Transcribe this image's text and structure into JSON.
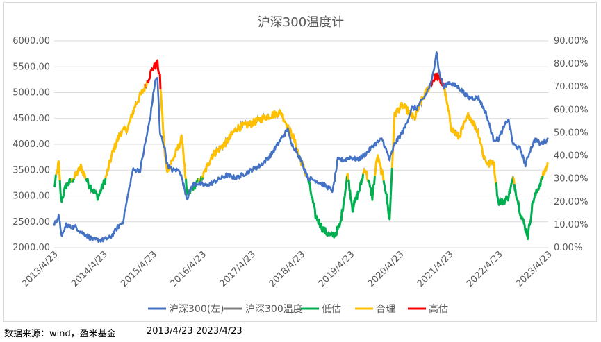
{
  "chart_data": {
    "type": "line",
    "title": "沪深300温度计",
    "left_axis": {
      "min": 2000,
      "max": 6000,
      "step": 500,
      "ticks": [
        "6000.00",
        "5500.00",
        "5000.00",
        "4500.00",
        "4000.00",
        "3500.00",
        "3000.00",
        "2500.00",
        "2000.00"
      ]
    },
    "right_axis": {
      "min": 0,
      "max": 90,
      "step": 10,
      "ticks": [
        "90.00%",
        "80.00%",
        "70.00%",
        "60.00%",
        "50.00%",
        "40.00%",
        "30.00%",
        "20.00%",
        "10.00%",
        "0.00%"
      ]
    },
    "x_axis": {
      "start": 2013.31,
      "end": 2023.31,
      "ticks": [
        "2013/4/23",
        "2014/4/23",
        "2015/4/23",
        "2016/4/23",
        "2017/4/23",
        "2018/4/23",
        "2019/4/23",
        "2020/4/23",
        "2021/4/23",
        "2022/4/23",
        "2023/4/23"
      ]
    },
    "thresholds": {
      "low": 30,
      "high": 70
    },
    "colors": {
      "index": "#4472C4",
      "temperature": "#808080",
      "low": "#00B050",
      "mid": "#FFC000",
      "high": "#FF0000"
    },
    "legend": [
      {
        "name": "沪深300(左)",
        "color": "#4472C4"
      },
      {
        "name": "沪深300温度",
        "color": "#808080"
      },
      {
        "name": "低估",
        "color": "#00B050"
      },
      {
        "name": "合理",
        "color": "#FFC000"
      },
      {
        "name": "高估",
        "color": "#FF0000"
      }
    ],
    "series": [
      {
        "name": "沪深300(左)",
        "axis": "left",
        "x": [
          2013.31,
          2013.4,
          2013.47,
          2013.55,
          2013.62,
          2013.75,
          2013.85,
          2013.95,
          2014.1,
          2014.3,
          2014.45,
          2014.6,
          2014.7,
          2014.8,
          2014.9,
          2014.95,
          2015.05,
          2015.15,
          2015.25,
          2015.35,
          2015.4,
          2015.45,
          2015.5,
          2015.55,
          2015.6,
          2015.7,
          2015.85,
          2016.0,
          2016.1,
          2016.2,
          2016.4,
          2016.6,
          2016.8,
          2017.0,
          2017.3,
          2017.5,
          2017.7,
          2017.9,
          2018.05,
          2018.1,
          2018.2,
          2018.3,
          2018.45,
          2018.6,
          2018.8,
          2018.95,
          2019.05,
          2019.2,
          2019.3,
          2019.45,
          2019.6,
          2019.8,
          2019.95,
          2020.1,
          2020.2,
          2020.4,
          2020.55,
          2020.65,
          2020.8,
          2020.95,
          2021.05,
          2021.1,
          2021.13,
          2021.2,
          2021.3,
          2021.5,
          2021.7,
          2021.9,
          2022.05,
          2022.2,
          2022.3,
          2022.4,
          2022.5,
          2022.6,
          2022.75,
          2022.85,
          2022.95,
          2023.05,
          2023.15,
          2023.31
        ],
        "y": [
          2450,
          2600,
          2200,
          2450,
          2400,
          2400,
          2300,
          2250,
          2150,
          2150,
          2200,
          2400,
          2500,
          3000,
          3500,
          3500,
          3500,
          4000,
          4500,
          5200,
          5300,
          4200,
          4100,
          3900,
          3600,
          3500,
          3500,
          2950,
          3200,
          3250,
          3200,
          3300,
          3400,
          3350,
          3500,
          3600,
          3800,
          4100,
          4300,
          4000,
          3900,
          3700,
          3350,
          3300,
          3200,
          3100,
          3700,
          3700,
          3750,
          3700,
          3800,
          4000,
          4100,
          3700,
          4000,
          4300,
          4700,
          4700,
          4900,
          5200,
          5800,
          5400,
          5300,
          5100,
          5200,
          5100,
          4900,
          4900,
          4600,
          4100,
          4100,
          4300,
          4500,
          4000,
          3900,
          3600,
          3900,
          4100,
          4000,
          4100
        ]
      },
      {
        "name": "沪深300温度",
        "axis": "right",
        "x": [
          2013.31,
          2013.4,
          2013.45,
          2013.55,
          2013.7,
          2013.85,
          2014.0,
          2014.2,
          2014.35,
          2014.5,
          2014.65,
          2014.8,
          2014.95,
          2015.15,
          2015.3,
          2015.4,
          2015.45,
          2015.55,
          2015.6,
          2015.75,
          2015.9,
          2016.0,
          2016.1,
          2016.3,
          2016.5,
          2016.8,
          2017.0,
          2017.3,
          2017.6,
          2017.9,
          2018.05,
          2018.15,
          2018.3,
          2018.45,
          2018.6,
          2018.75,
          2018.9,
          2019.0,
          2019.1,
          2019.25,
          2019.35,
          2019.5,
          2019.6,
          2019.75,
          2019.85,
          2020.0,
          2020.1,
          2020.2,
          2020.35,
          2020.45,
          2020.6,
          2020.75,
          2020.85,
          2020.95,
          2021.05,
          2021.2,
          2021.35,
          2021.5,
          2021.7,
          2021.9,
          2022.0,
          2022.1,
          2022.2,
          2022.3,
          2022.4,
          2022.5,
          2022.6,
          2022.75,
          2022.9,
          2023.0,
          2023.2,
          2023.31
        ],
        "y": [
          26,
          37,
          20,
          27,
          30,
          35,
          28,
          22,
          30,
          42,
          50,
          52,
          62,
          70,
          78,
          80,
          74,
          40,
          34,
          40,
          48,
          22,
          26,
          30,
          40,
          46,
          52,
          54,
          57,
          59,
          52,
          48,
          38,
          30,
          14,
          8,
          5,
          6,
          10,
          32,
          17,
          26,
          35,
          22,
          40,
          28,
          12,
          58,
          62,
          60,
          56,
          64,
          68,
          72,
          75,
          70,
          52,
          48,
          58,
          50,
          40,
          36,
          38,
          20,
          20,
          22,
          30,
          15,
          5,
          20,
          31,
          37
        ]
      }
    ]
  },
  "footer": {
    "source": "数据来源：wind，盈米基金",
    "start_date": "2013/4/23",
    "end_date": "2023/4/23"
  }
}
